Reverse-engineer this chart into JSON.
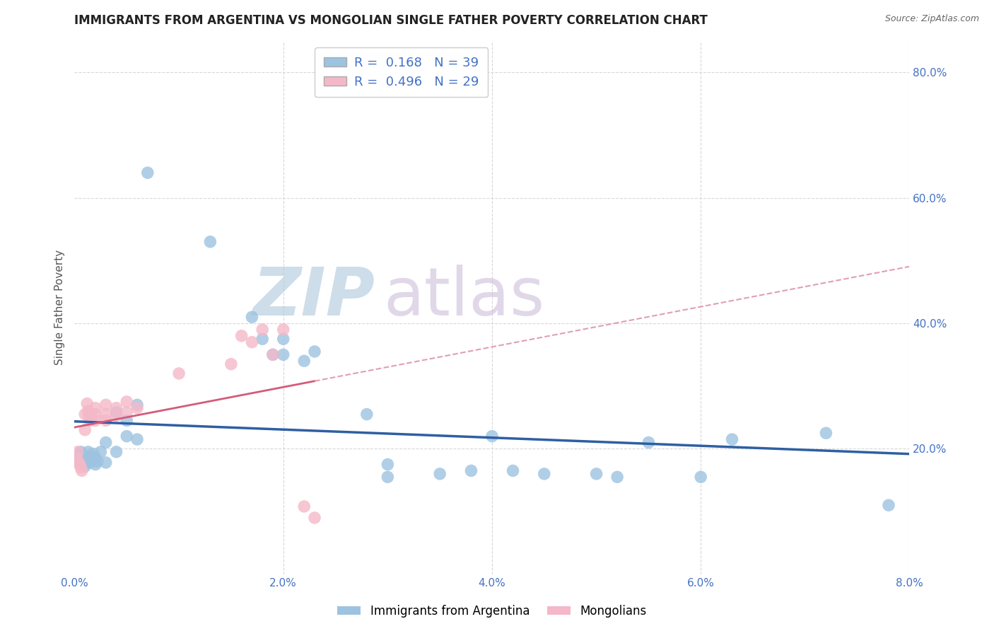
{
  "title": "IMMIGRANTS FROM ARGENTINA VS MONGOLIAN SINGLE FATHER POVERTY CORRELATION CHART",
  "source": "Source: ZipAtlas.com",
  "ylabel": "Single Father Poverty",
  "legend_label_blue": "Immigrants from Argentina",
  "legend_label_pink": "Mongolians",
  "argentina_points": [
    [
      0.0003,
      0.185
    ],
    [
      0.0005,
      0.19
    ],
    [
      0.0006,
      0.195
    ],
    [
      0.0007,
      0.18
    ],
    [
      0.0008,
      0.178
    ],
    [
      0.0009,
      0.175
    ],
    [
      0.001,
      0.183
    ],
    [
      0.001,
      0.172
    ],
    [
      0.0012,
      0.188
    ],
    [
      0.0013,
      0.195
    ],
    [
      0.0015,
      0.178
    ],
    [
      0.0016,
      0.183
    ],
    [
      0.0018,
      0.192
    ],
    [
      0.002,
      0.185
    ],
    [
      0.002,
      0.175
    ],
    [
      0.0022,
      0.18
    ],
    [
      0.0025,
      0.195
    ],
    [
      0.003,
      0.21
    ],
    [
      0.003,
      0.178
    ],
    [
      0.004,
      0.258
    ],
    [
      0.004,
      0.195
    ],
    [
      0.005,
      0.245
    ],
    [
      0.005,
      0.22
    ],
    [
      0.006,
      0.27
    ],
    [
      0.006,
      0.215
    ],
    [
      0.007,
      0.64
    ],
    [
      0.013,
      0.53
    ],
    [
      0.017,
      0.41
    ],
    [
      0.018,
      0.375
    ],
    [
      0.019,
      0.35
    ],
    [
      0.02,
      0.375
    ],
    [
      0.02,
      0.35
    ],
    [
      0.022,
      0.34
    ],
    [
      0.023,
      0.355
    ],
    [
      0.028,
      0.255
    ],
    [
      0.03,
      0.175
    ],
    [
      0.03,
      0.155
    ],
    [
      0.035,
      0.16
    ],
    [
      0.038,
      0.165
    ],
    [
      0.04,
      0.22
    ],
    [
      0.042,
      0.165
    ],
    [
      0.045,
      0.16
    ],
    [
      0.05,
      0.16
    ],
    [
      0.052,
      0.155
    ],
    [
      0.055,
      0.21
    ],
    [
      0.06,
      0.155
    ],
    [
      0.063,
      0.215
    ],
    [
      0.072,
      0.225
    ],
    [
      0.078,
      0.11
    ]
  ],
  "mongolian_points": [
    [
      0.0002,
      0.185
    ],
    [
      0.0003,
      0.195
    ],
    [
      0.0004,
      0.178
    ],
    [
      0.0005,
      0.175
    ],
    [
      0.0006,
      0.17
    ],
    [
      0.0007,
      0.165
    ],
    [
      0.001,
      0.255
    ],
    [
      0.001,
      0.23
    ],
    [
      0.0012,
      0.272
    ],
    [
      0.0013,
      0.26
    ],
    [
      0.0014,
      0.25
    ],
    [
      0.0015,
      0.245
    ],
    [
      0.002,
      0.265
    ],
    [
      0.002,
      0.255
    ],
    [
      0.002,
      0.245
    ],
    [
      0.003,
      0.27
    ],
    [
      0.003,
      0.255
    ],
    [
      0.003,
      0.245
    ],
    [
      0.004,
      0.265
    ],
    [
      0.004,
      0.253
    ],
    [
      0.005,
      0.275
    ],
    [
      0.005,
      0.258
    ],
    [
      0.006,
      0.265
    ],
    [
      0.01,
      0.32
    ],
    [
      0.015,
      0.335
    ],
    [
      0.016,
      0.38
    ],
    [
      0.017,
      0.37
    ],
    [
      0.018,
      0.39
    ],
    [
      0.019,
      0.35
    ],
    [
      0.02,
      0.39
    ],
    [
      0.022,
      0.108
    ],
    [
      0.023,
      0.09
    ]
  ],
  "xlim": [
    0,
    0.08
  ],
  "ylim": [
    0,
    0.85
  ],
  "xticks": [
    0,
    0.02,
    0.04,
    0.06,
    0.08
  ],
  "xticklabels": [
    "0.0%",
    "2.0%",
    "4.0%",
    "6.0%",
    "8.0%"
  ],
  "yticks": [
    0.2,
    0.4,
    0.6,
    0.8
  ],
  "yticklabels": [
    "20.0%",
    "40.0%",
    "60.0%",
    "80.0%"
  ],
  "background_color": "#ffffff",
  "grid_color": "#d8d8d8",
  "blue_scatter_color": "#9dc3e0",
  "pink_scatter_color": "#f4b8c8",
  "blue_line_color": "#2e5fa3",
  "pink_line_color": "#d45b7a",
  "pink_dashed_color": "#e0a0b0",
  "tick_color": "#4472c4",
  "watermark_zip_color": "#b8cfe0",
  "watermark_atlas_color": "#c8b8d8",
  "legend_box_color": "#9dc3e0",
  "legend_pink_color": "#f4b8c8"
}
